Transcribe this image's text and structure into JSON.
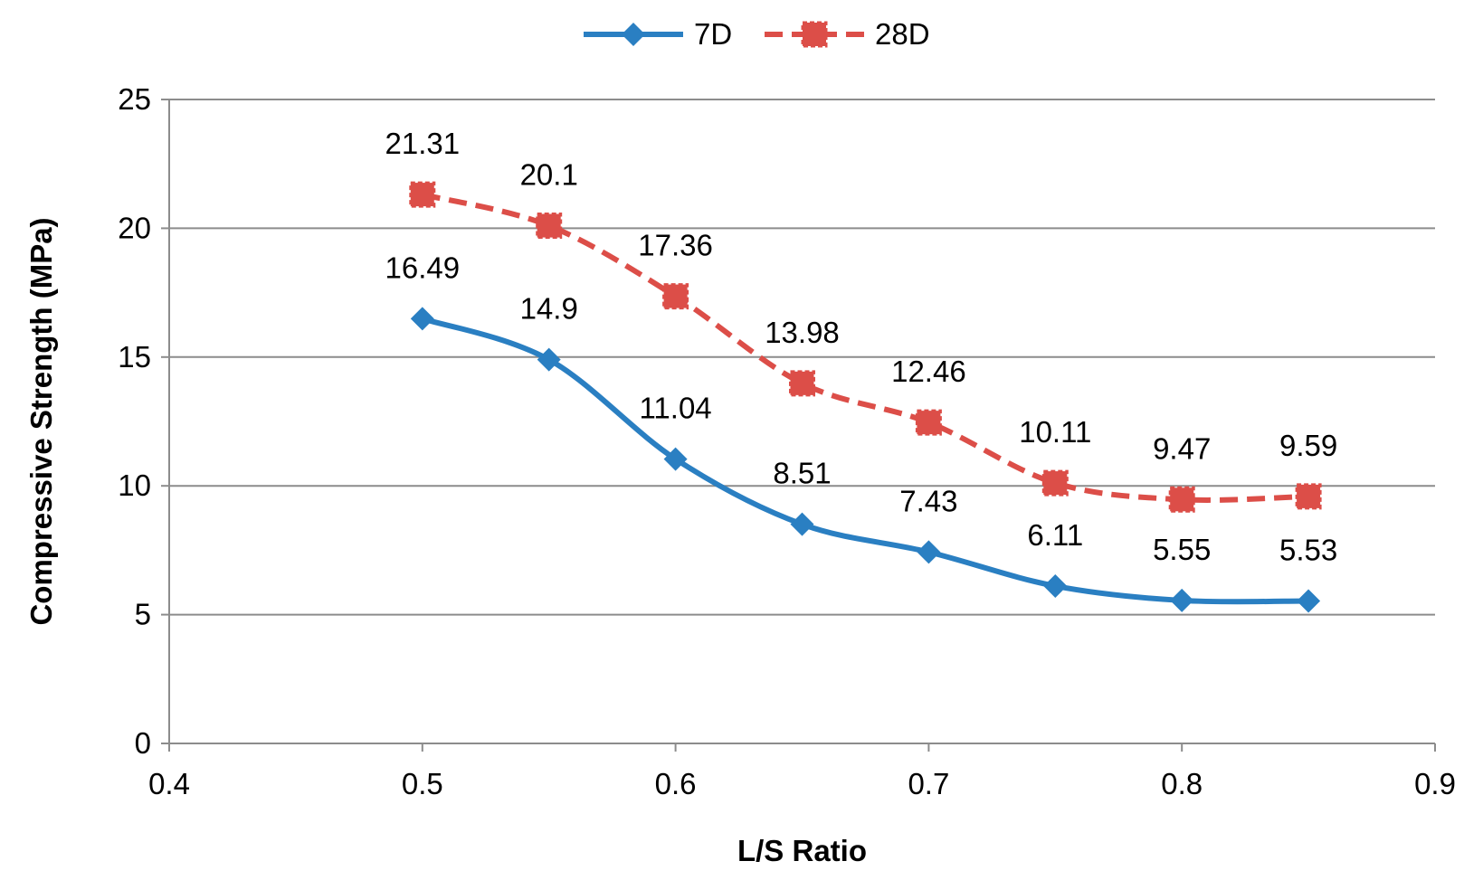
{
  "chart_data": {
    "type": "line",
    "title": "",
    "xlabel": "L/S Ratio",
    "ylabel": "Compressive Strength (MPa)",
    "xlim": [
      0.4,
      0.9
    ],
    "ylim": [
      0,
      25
    ],
    "x_ticks": [
      0.4,
      0.5,
      0.6,
      0.7,
      0.8,
      0.9
    ],
    "x_tick_labels": [
      "0.4",
      "0.5",
      "0.6",
      "0.7",
      "0.8",
      "0.9"
    ],
    "y_ticks": [
      0,
      5,
      10,
      15,
      20,
      25
    ],
    "y_tick_labels": [
      "0",
      "5",
      "10",
      "15",
      "20",
      "25"
    ],
    "grid": "horizontal",
    "legend_position": "top-center",
    "x": [
      0.5,
      0.55,
      0.6,
      0.65,
      0.7,
      0.75,
      0.8,
      0.85
    ],
    "series": [
      {
        "name": "7D",
        "values": [
          16.49,
          14.9,
          11.04,
          8.51,
          7.43,
          6.11,
          5.55,
          5.53
        ],
        "labels": [
          "16.49",
          "14.9",
          "11.04",
          "8.51",
          "7.43",
          "6.11",
          "5.55",
          "5.53"
        ],
        "color": "#2a7fc2",
        "marker": "diamond",
        "line_style": "solid"
      },
      {
        "name": "28D",
        "values": [
          21.31,
          20.1,
          17.36,
          13.98,
          12.46,
          10.11,
          9.47,
          9.59
        ],
        "labels": [
          "21.31",
          "20.1",
          "17.36",
          "13.98",
          "12.46",
          "10.11",
          "9.47",
          "9.59"
        ],
        "color": "#dc4e48",
        "marker": "square",
        "line_style": "dashed"
      }
    ]
  }
}
